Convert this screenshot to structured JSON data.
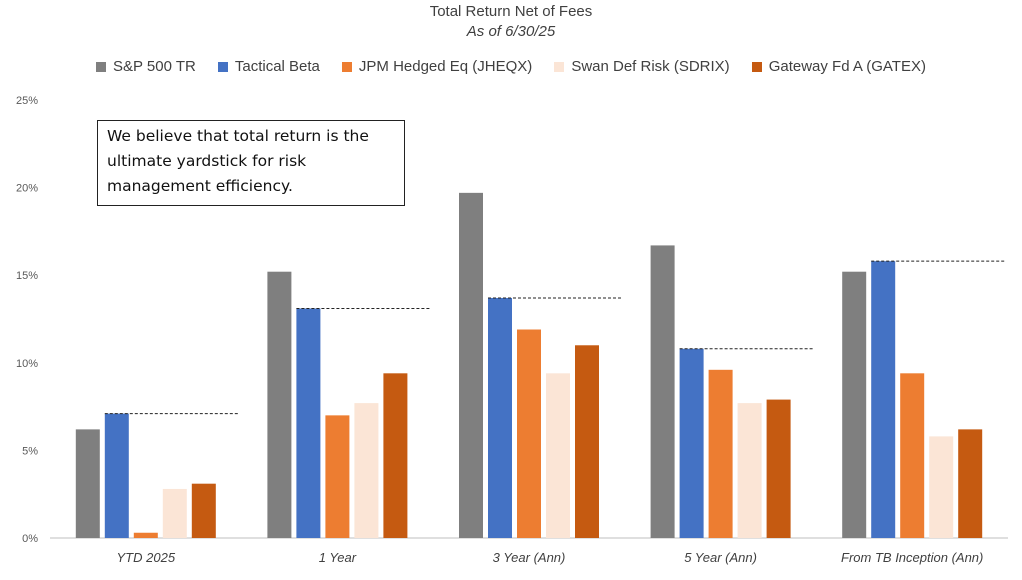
{
  "chart_data": {
    "type": "bar",
    "title": "Total Return Net of Fees",
    "subtitle": "As of 6/30/25",
    "categories": [
      "YTD 2025",
      "1 Year",
      "3 Year (Ann)",
      "5 Year (Ann)",
      "From TB Inception (Ann)"
    ],
    "series": [
      {
        "name": "S&P 500 TR",
        "color": "#7f7f7f",
        "values": [
          6.2,
          15.2,
          19.7,
          16.7,
          15.2
        ]
      },
      {
        "name": "Tactical Beta",
        "color": "#4472c4",
        "values": [
          7.1,
          13.1,
          13.7,
          10.8,
          15.8
        ]
      },
      {
        "name": "JPM Hedged Eq (JHEQX)",
        "color": "#ed7d31",
        "values": [
          0.3,
          7.0,
          11.9,
          9.6,
          9.4
        ]
      },
      {
        "name": "Swan Def Risk (SDRIX)",
        "color": "#fbe5d6",
        "values": [
          2.8,
          7.7,
          9.4,
          7.7,
          5.8
        ]
      },
      {
        "name": "Gateway Fd A (GATEX)",
        "color": "#c55a11",
        "values": [
          3.1,
          9.4,
          11.0,
          7.9,
          6.2
        ]
      }
    ],
    "y_ticks": [
      "0%",
      "5%",
      "10%",
      "15%",
      "20%",
      "25%"
    ],
    "ylim": [
      0,
      25
    ],
    "grid": false,
    "legend_position": "top",
    "reference_lines": "dashed line at Tactical Beta value per category",
    "annotation": "We believe that total return is the ultimate yardstick for risk management efficiency."
  }
}
